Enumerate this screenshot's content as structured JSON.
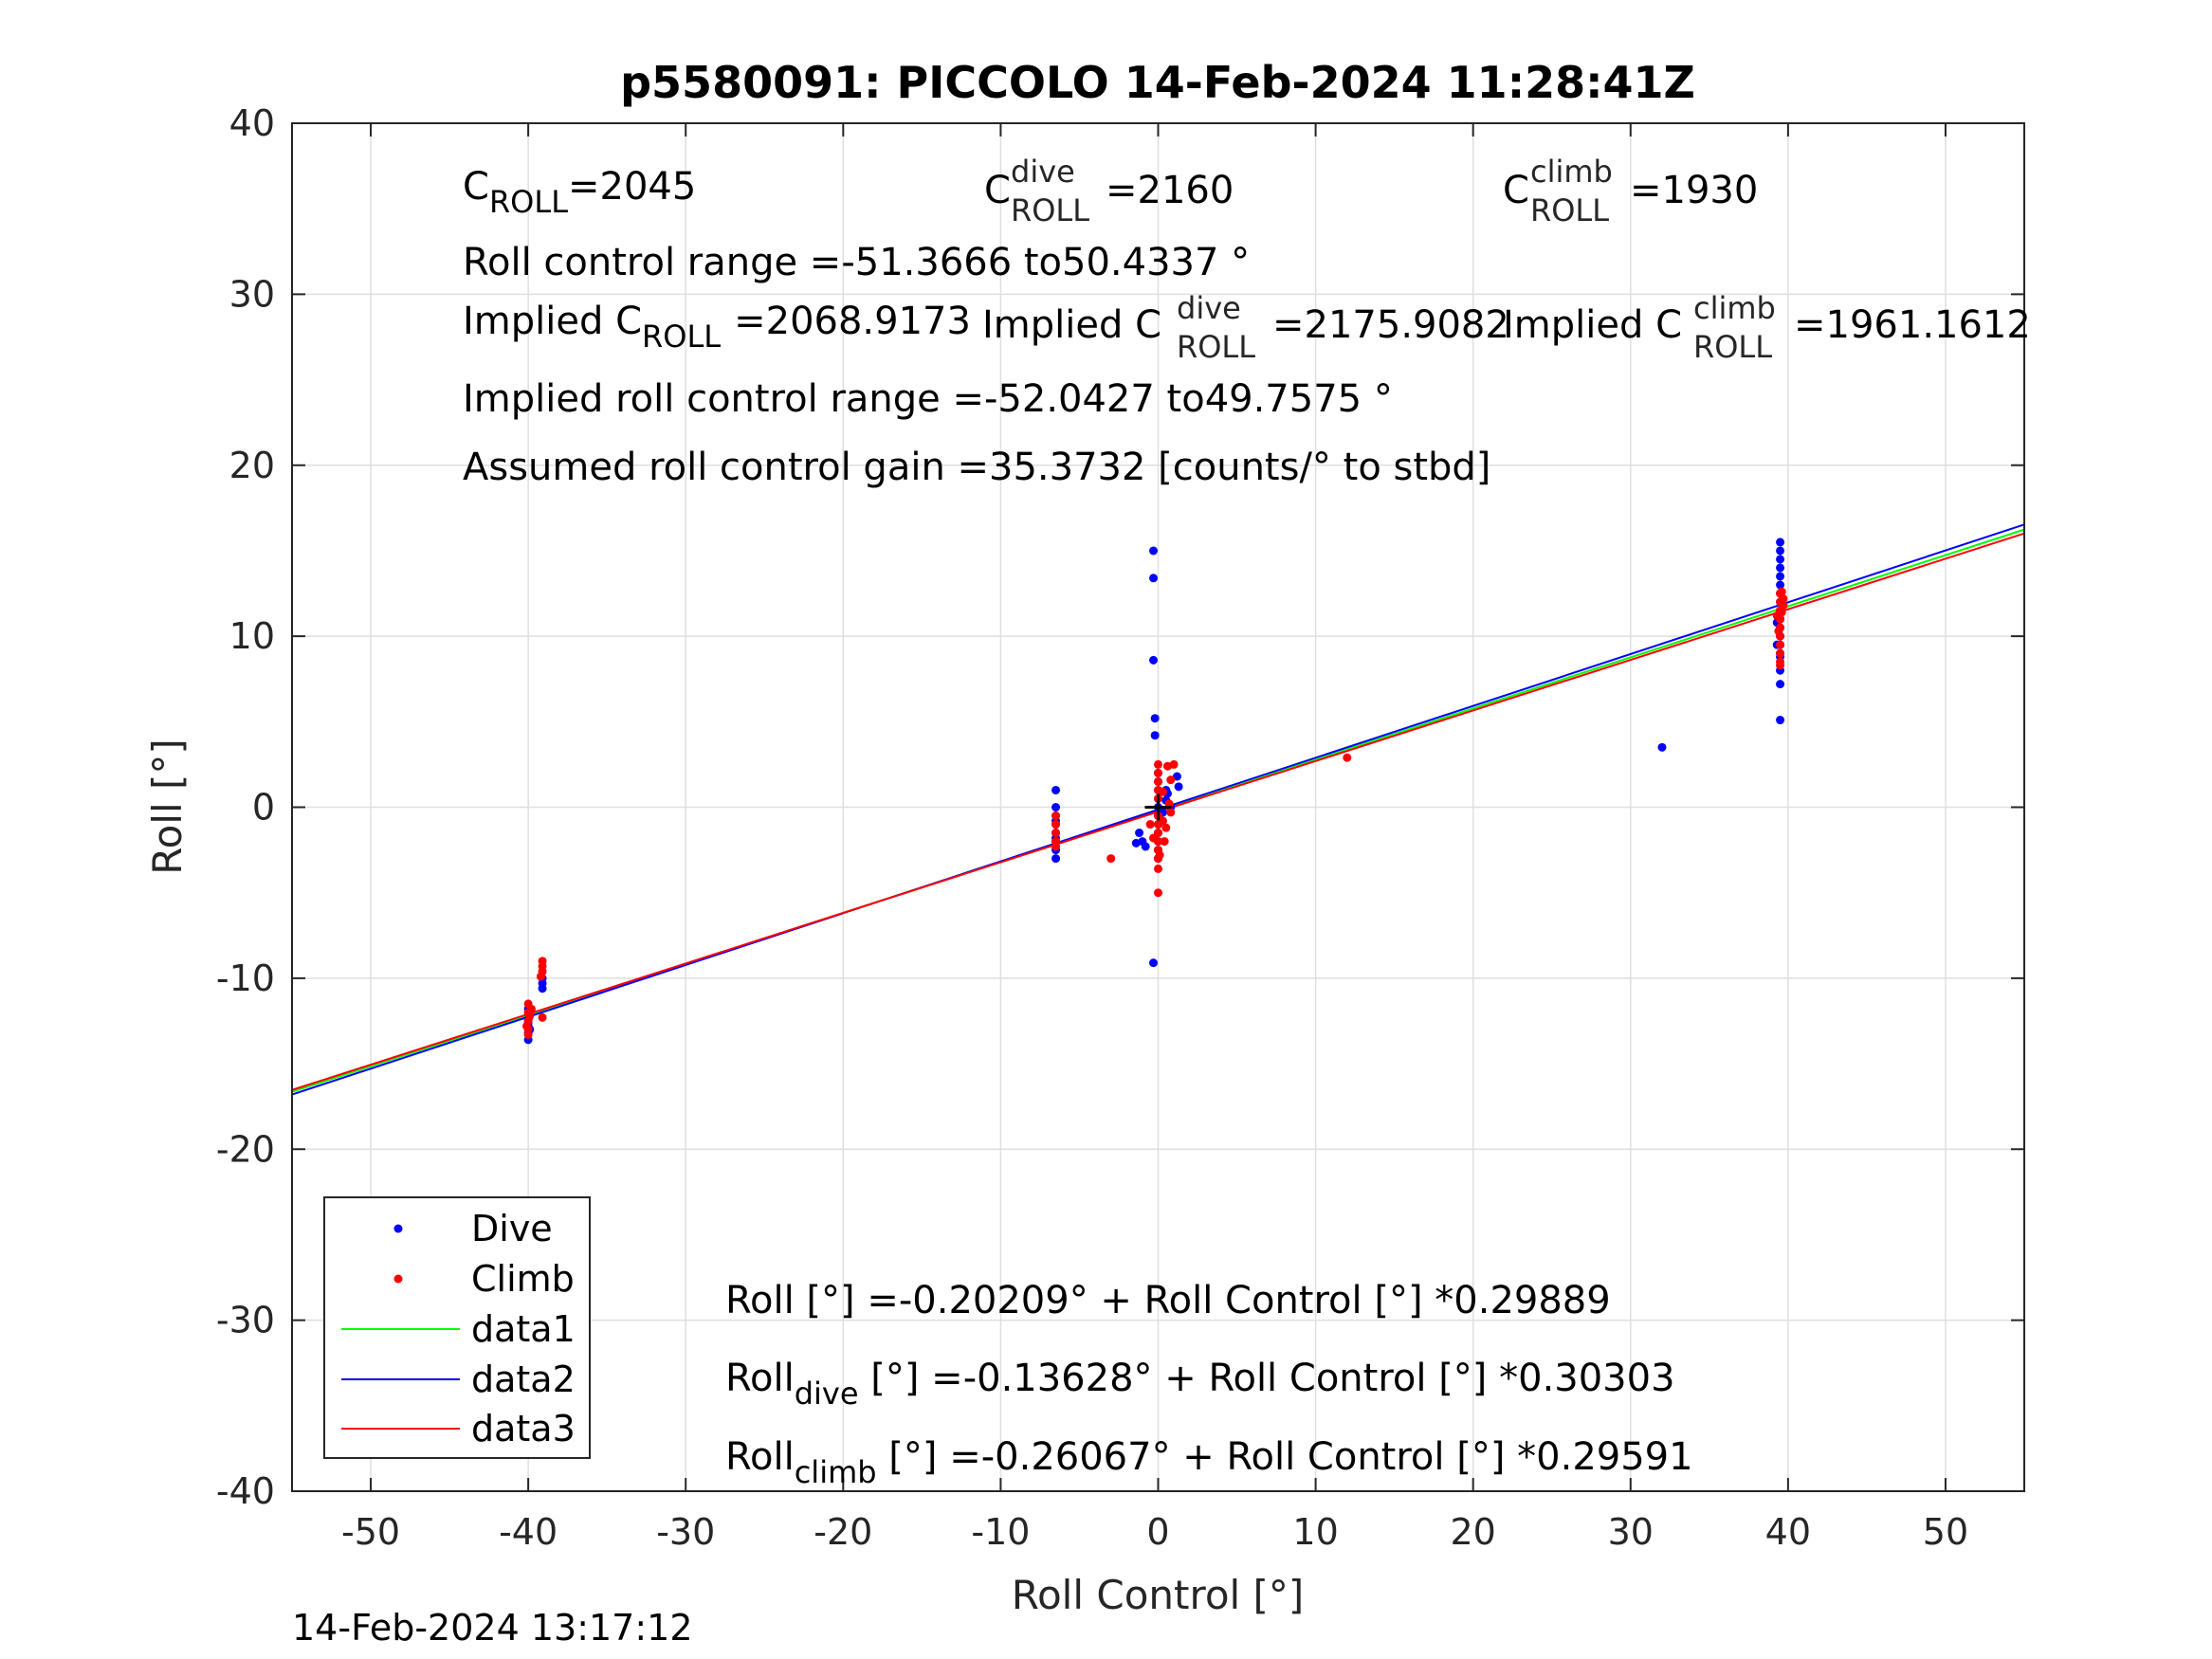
{
  "chart_data": {
    "type": "scatter",
    "title": "p5580091: PICCOLO 14-Feb-2024 11:28:41Z",
    "xlabel": "Roll Control [°]",
    "ylabel": "Roll [°]",
    "xlim": [
      -55,
      55
    ],
    "ylim": [
      -40,
      40
    ],
    "xticks": [
      -50,
      -40,
      -30,
      -20,
      -10,
      0,
      10,
      20,
      30,
      40,
      50
    ],
    "yticks": [
      -40,
      -30,
      -20,
      -10,
      0,
      10,
      20,
      30,
      40
    ],
    "xtick_labels": [
      "-50",
      "-40",
      "-30",
      "-20",
      "-10",
      "0",
      "10",
      "20",
      "30",
      "40",
      "50"
    ],
    "ytick_labels": [
      "-40",
      "-30",
      "-20",
      "-10",
      "0",
      "10",
      "20",
      "30",
      "40"
    ],
    "grid": true,
    "legend_position": "bottom-left",
    "series": [
      {
        "name": "Dive",
        "kind": "points",
        "color": "#0000ff",
        "points": [
          [
            -40.0,
            -12.0
          ],
          [
            -40.0,
            -12.4
          ],
          [
            -40.0,
            -12.8
          ],
          [
            -40.0,
            -13.2
          ],
          [
            -40.0,
            -13.6
          ],
          [
            -40.0,
            -11.8
          ],
          [
            -40.0,
            -12.6
          ],
          [
            -39.9,
            -13.0
          ],
          [
            -39.1,
            -10.0
          ],
          [
            -39.1,
            -10.3
          ],
          [
            -39.1,
            -10.6
          ],
          [
            -6.5,
            1.0
          ],
          [
            -6.5,
            0.0
          ],
          [
            -6.5,
            -0.5
          ],
          [
            -6.5,
            -1.0
          ],
          [
            -6.5,
            -1.5
          ],
          [
            -6.5,
            -2.0
          ],
          [
            -6.5,
            -2.5
          ],
          [
            -6.5,
            -3.0
          ],
          [
            -6.5,
            -0.8
          ],
          [
            -6.5,
            -1.8
          ],
          [
            -0.3,
            15.0
          ],
          [
            -0.3,
            13.4
          ],
          [
            -0.3,
            8.6
          ],
          [
            -0.2,
            5.2
          ],
          [
            -0.2,
            4.2
          ],
          [
            0.0,
            2.0
          ],
          [
            0.0,
            1.5
          ],
          [
            0.0,
            1.0
          ],
          [
            0.0,
            0.5
          ],
          [
            0.0,
            0.0
          ],
          [
            0.0,
            -0.5
          ],
          [
            0.0,
            -1.0
          ],
          [
            0.0,
            -1.5
          ],
          [
            0.0,
            -2.0
          ],
          [
            0.0,
            -2.5
          ],
          [
            0.0,
            -3.0
          ],
          [
            -0.3,
            -9.1
          ],
          [
            0.5,
            1.0
          ],
          [
            0.5,
            0.4
          ],
          [
            0.8,
            0.0
          ],
          [
            1.2,
            1.8
          ],
          [
            1.3,
            1.2
          ],
          [
            -1.2,
            -1.5
          ],
          [
            -1.0,
            -2.0
          ],
          [
            -0.8,
            -2.3
          ],
          [
            -1.4,
            -2.1
          ],
          [
            0.3,
            -0.3
          ],
          [
            0.6,
            0.8
          ],
          [
            32.0,
            3.5
          ],
          [
            39.5,
            15.5
          ],
          [
            39.5,
            15.0
          ],
          [
            39.5,
            14.5
          ],
          [
            39.5,
            14.0
          ],
          [
            39.5,
            13.5
          ],
          [
            39.5,
            13.0
          ],
          [
            39.5,
            12.5
          ],
          [
            39.5,
            12.0
          ],
          [
            39.5,
            11.5
          ],
          [
            39.5,
            11.0
          ],
          [
            39.5,
            10.5
          ],
          [
            39.5,
            10.0
          ],
          [
            39.5,
            9.5
          ],
          [
            39.5,
            9.0
          ],
          [
            39.5,
            8.8
          ],
          [
            39.5,
            8.0
          ],
          [
            39.5,
            7.2
          ],
          [
            39.5,
            5.1
          ],
          [
            39.3,
            9.5
          ],
          [
            39.3,
            10.8
          ]
        ]
      },
      {
        "name": "Climb",
        "kind": "points",
        "color": "#ff0000",
        "points": [
          [
            -40.0,
            -11.5
          ],
          [
            -40.0,
            -12.0
          ],
          [
            -40.0,
            -12.5
          ],
          [
            -40.0,
            -13.0
          ],
          [
            -39.9,
            -12.2
          ],
          [
            -40.1,
            -12.8
          ],
          [
            -39.8,
            -11.8
          ],
          [
            -40.0,
            -13.3
          ],
          [
            -39.1,
            -9.0
          ],
          [
            -39.1,
            -9.3
          ],
          [
            -39.1,
            -9.6
          ],
          [
            -39.2,
            -9.9
          ],
          [
            -39.1,
            -12.3
          ],
          [
            -6.5,
            -0.5
          ],
          [
            -6.5,
            -1.0
          ],
          [
            -6.5,
            -1.5
          ],
          [
            -6.5,
            -2.0
          ],
          [
            -6.5,
            -2.3
          ],
          [
            -3.0,
            -3.0
          ],
          [
            0.0,
            2.5
          ],
          [
            0.0,
            2.0
          ],
          [
            0.0,
            1.5
          ],
          [
            0.0,
            1.0
          ],
          [
            0.0,
            0.5
          ],
          [
            0.0,
            -0.5
          ],
          [
            0.0,
            -1.0
          ],
          [
            0.0,
            -1.5
          ],
          [
            0.0,
            -2.0
          ],
          [
            0.0,
            -2.5
          ],
          [
            0.0,
            -3.0
          ],
          [
            0.0,
            -3.6
          ],
          [
            0.0,
            -5.0
          ],
          [
            0.3,
            -0.8
          ],
          [
            0.5,
            -1.2
          ],
          [
            0.6,
            2.4
          ],
          [
            0.8,
            1.6
          ],
          [
            0.3,
            0.9
          ],
          [
            -0.3,
            -1.8
          ],
          [
            0.1,
            -2.8
          ],
          [
            0.8,
            -0.3
          ],
          [
            1.0,
            2.5
          ],
          [
            -0.5,
            -1.0
          ],
          [
            0.4,
            -2.0
          ],
          [
            0.7,
            0.2
          ],
          [
            12.0,
            2.9
          ],
          [
            39.5,
            12.5
          ],
          [
            39.5,
            12.0
          ],
          [
            39.5,
            11.5
          ],
          [
            39.5,
            11.0
          ],
          [
            39.5,
            10.5
          ],
          [
            39.5,
            10.0
          ],
          [
            39.5,
            9.5
          ],
          [
            39.5,
            9.0
          ],
          [
            39.5,
            8.5
          ],
          [
            39.5,
            8.3
          ],
          [
            39.7,
            11.8
          ],
          [
            39.7,
            12.2
          ],
          [
            39.3,
            11.2
          ],
          [
            39.4,
            10.3
          ],
          [
            39.6,
            12.6
          ],
          [
            39.6,
            11.4
          ]
        ]
      },
      {
        "name": "data1",
        "kind": "line",
        "color": "#00ff00",
        "intercept": -0.20209,
        "slope": 0.29889
      },
      {
        "name": "data2",
        "kind": "line",
        "color": "#0000ff",
        "intercept": -0.13628,
        "slope": 0.30303
      },
      {
        "name": "data3",
        "kind": "line",
        "color": "#ff0000",
        "intercept": -0.26067,
        "slope": 0.29591
      }
    ],
    "cross_marker": [
      0,
      0
    ],
    "annotations": {
      "c_roll": {
        "base": "C",
        "sub": "ROLL",
        "value": "=2045"
      },
      "c_roll_dive": {
        "base": "C",
        "sup": "dive",
        "sub": "ROLL",
        "value": "=2160"
      },
      "c_roll_climb": {
        "base": "C",
        "sup": "climb",
        "sub": "ROLL",
        "value": "=1930"
      },
      "roll_control_range": "Roll control range =-51.3666 to50.4337 °",
      "implied_c_roll": {
        "prefix": "Implied C",
        "sub": "ROLL",
        "value": "=2068.9173"
      },
      "implied_c_roll_dive": {
        "prefix": "Implied C",
        "sup": "dive",
        "sub": "ROLL",
        "value": "=2175.9082"
      },
      "implied_c_roll_climb": {
        "prefix": "Implied C",
        "sup": "climb",
        "sub": "ROLL",
        "value": "=1961.1612"
      },
      "implied_roll_control_range": "Implied roll control range =-52.0427 to49.7575 °",
      "assumed_gain": "Assumed roll control gain =35.3732 [counts/° to stbd]",
      "fit_all": "Roll [°] =-0.20209° + Roll Control [°] *0.29889",
      "fit_dive": {
        "prefix": "Roll",
        "sub": "dive",
        "rest": " [°] =-0.13628° + Roll Control [°] *0.30303"
      },
      "fit_climb": {
        "prefix": "Roll",
        "sub": "climb",
        "rest": " [°] =-0.26067° + Roll Control [°] *0.29591"
      }
    },
    "timestamp": "14-Feb-2024 13:17:12"
  }
}
